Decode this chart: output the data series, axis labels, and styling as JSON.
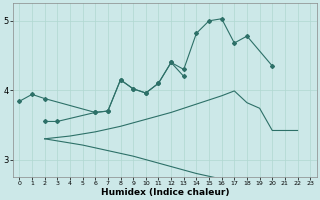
{
  "xlabel": "Humidex (Indice chaleur)",
  "bg_color": "#cce8e8",
  "line_color": "#2d7068",
  "grid_color": "#b0d8d0",
  "xlim": [
    -0.5,
    23.5
  ],
  "ylim": [
    2.75,
    5.25
  ],
  "yticks": [
    3,
    4,
    5
  ],
  "xticks": [
    0,
    1,
    2,
    3,
    4,
    5,
    6,
    7,
    8,
    9,
    10,
    11,
    12,
    13,
    14,
    15,
    16,
    17,
    18,
    19,
    20,
    21,
    22,
    23
  ],
  "line1_x": [
    0,
    1,
    2,
    6,
    7,
    8,
    9,
    10,
    11,
    12,
    13,
    14,
    15,
    16,
    17,
    18,
    20
  ],
  "line1_y": [
    3.84,
    3.94,
    3.88,
    3.68,
    3.7,
    4.15,
    4.02,
    3.96,
    4.1,
    4.4,
    4.3,
    4.82,
    5.0,
    5.03,
    4.68,
    4.78,
    4.35
  ],
  "line2_x": [
    2,
    3,
    6,
    7,
    8,
    9,
    10,
    11,
    12,
    13
  ],
  "line2_y": [
    3.55,
    3.55,
    3.68,
    3.7,
    4.15,
    4.02,
    3.96,
    4.1,
    4.4,
    4.2
  ],
  "line3_x": [
    2,
    3,
    4,
    5,
    6,
    7,
    8,
    9,
    10,
    11,
    12,
    13,
    14,
    15,
    16,
    17,
    18,
    19,
    20,
    21,
    22
  ],
  "line3_y": [
    3.3,
    3.32,
    3.34,
    3.37,
    3.4,
    3.44,
    3.48,
    3.53,
    3.58,
    3.63,
    3.68,
    3.74,
    3.8,
    3.86,
    3.92,
    3.99,
    3.82,
    3.74,
    3.42,
    3.42,
    3.42
  ],
  "line4_x": [
    2,
    3,
    4,
    5,
    6,
    7,
    8,
    9,
    10,
    11,
    12,
    13,
    14,
    15,
    16,
    17,
    18,
    19,
    20,
    21,
    22,
    23
  ],
  "line4_y": [
    3.3,
    3.27,
    3.24,
    3.21,
    3.17,
    3.13,
    3.09,
    3.05,
    3.0,
    2.95,
    2.9,
    2.85,
    2.8,
    2.76,
    2.72,
    2.68,
    2.65,
    2.61,
    2.58,
    2.55,
    2.52,
    2.49
  ]
}
